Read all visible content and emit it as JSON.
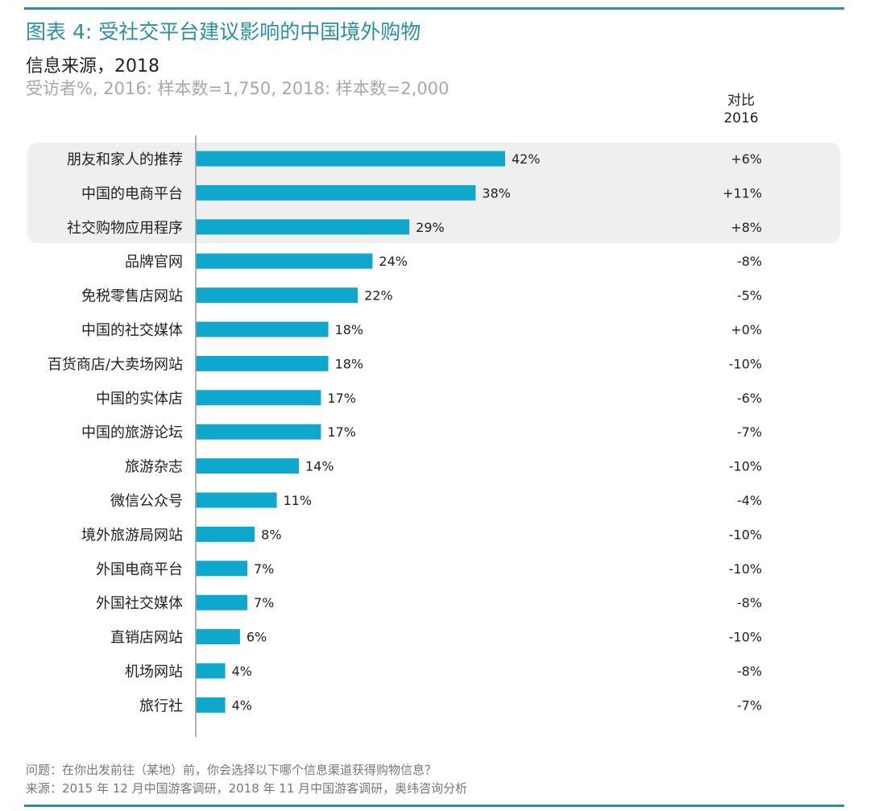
{
  "header": {
    "title": "图表 4: 受社交平台建议影响的中国境外购物",
    "subtitle": "信息来源，2018",
    "subtitle2": "受访者%, 2016: 样本数=1,750, 2018: 样本数=2,000",
    "compare_line1": "对比",
    "compare_line2": "2016"
  },
  "chart_data": {
    "type": "bar",
    "orientation": "horizontal",
    "title": "受社交平台建议影响的中国境外购物",
    "xlabel": "",
    "ylabel": "信息来源",
    "xlim": [
      0,
      50
    ],
    "bar_color": "#0fa8cc",
    "highlighted_categories": [
      "朋友和家人的推荐",
      "中国的电商平台",
      "社交购物应用程序"
    ],
    "categories": [
      "朋友和家人的推荐",
      "中国的电商平台",
      "社交购物应用程序",
      "品牌官网",
      "免税零售店网站",
      "中国的社交媒体",
      "百货商店/大卖场网站",
      "中国的实体店",
      "中国的旅游论坛",
      "旅游杂志",
      "微信公众号",
      "境外旅游局网站",
      "外国电商平台",
      "外国社交媒体",
      "直销店网站",
      "机场网站",
      "旅行社"
    ],
    "values": [
      42,
      38,
      29,
      24,
      22,
      18,
      18,
      17,
      17,
      14,
      11,
      8,
      7,
      7,
      6,
      4,
      4
    ],
    "value_labels": [
      "42%",
      "38%",
      "29%",
      "24%",
      "22%",
      "18%",
      "18%",
      "17%",
      "17%",
      "14%",
      "11%",
      "8%",
      "7%",
      "7%",
      "6%",
      "4%",
      "4%"
    ],
    "change_vs_2016": [
      "+6%",
      "+11%",
      "+8%",
      "-8%",
      "-5%",
      "+0%",
      "-10%",
      "-6%",
      "-7%",
      "-10%",
      "-4%",
      "-10%",
      "-10%",
      "-8%",
      "-10%",
      "-8%",
      "-7%"
    ]
  },
  "footer": {
    "question": "问题：在你出发前往（某地）前，你会选择以下哪个信息渠道获得购物信息？",
    "source": "来源：2015 年 12 月中国游客调研，2018 年 11 月中国游客调研，奥纬咨询分析"
  }
}
